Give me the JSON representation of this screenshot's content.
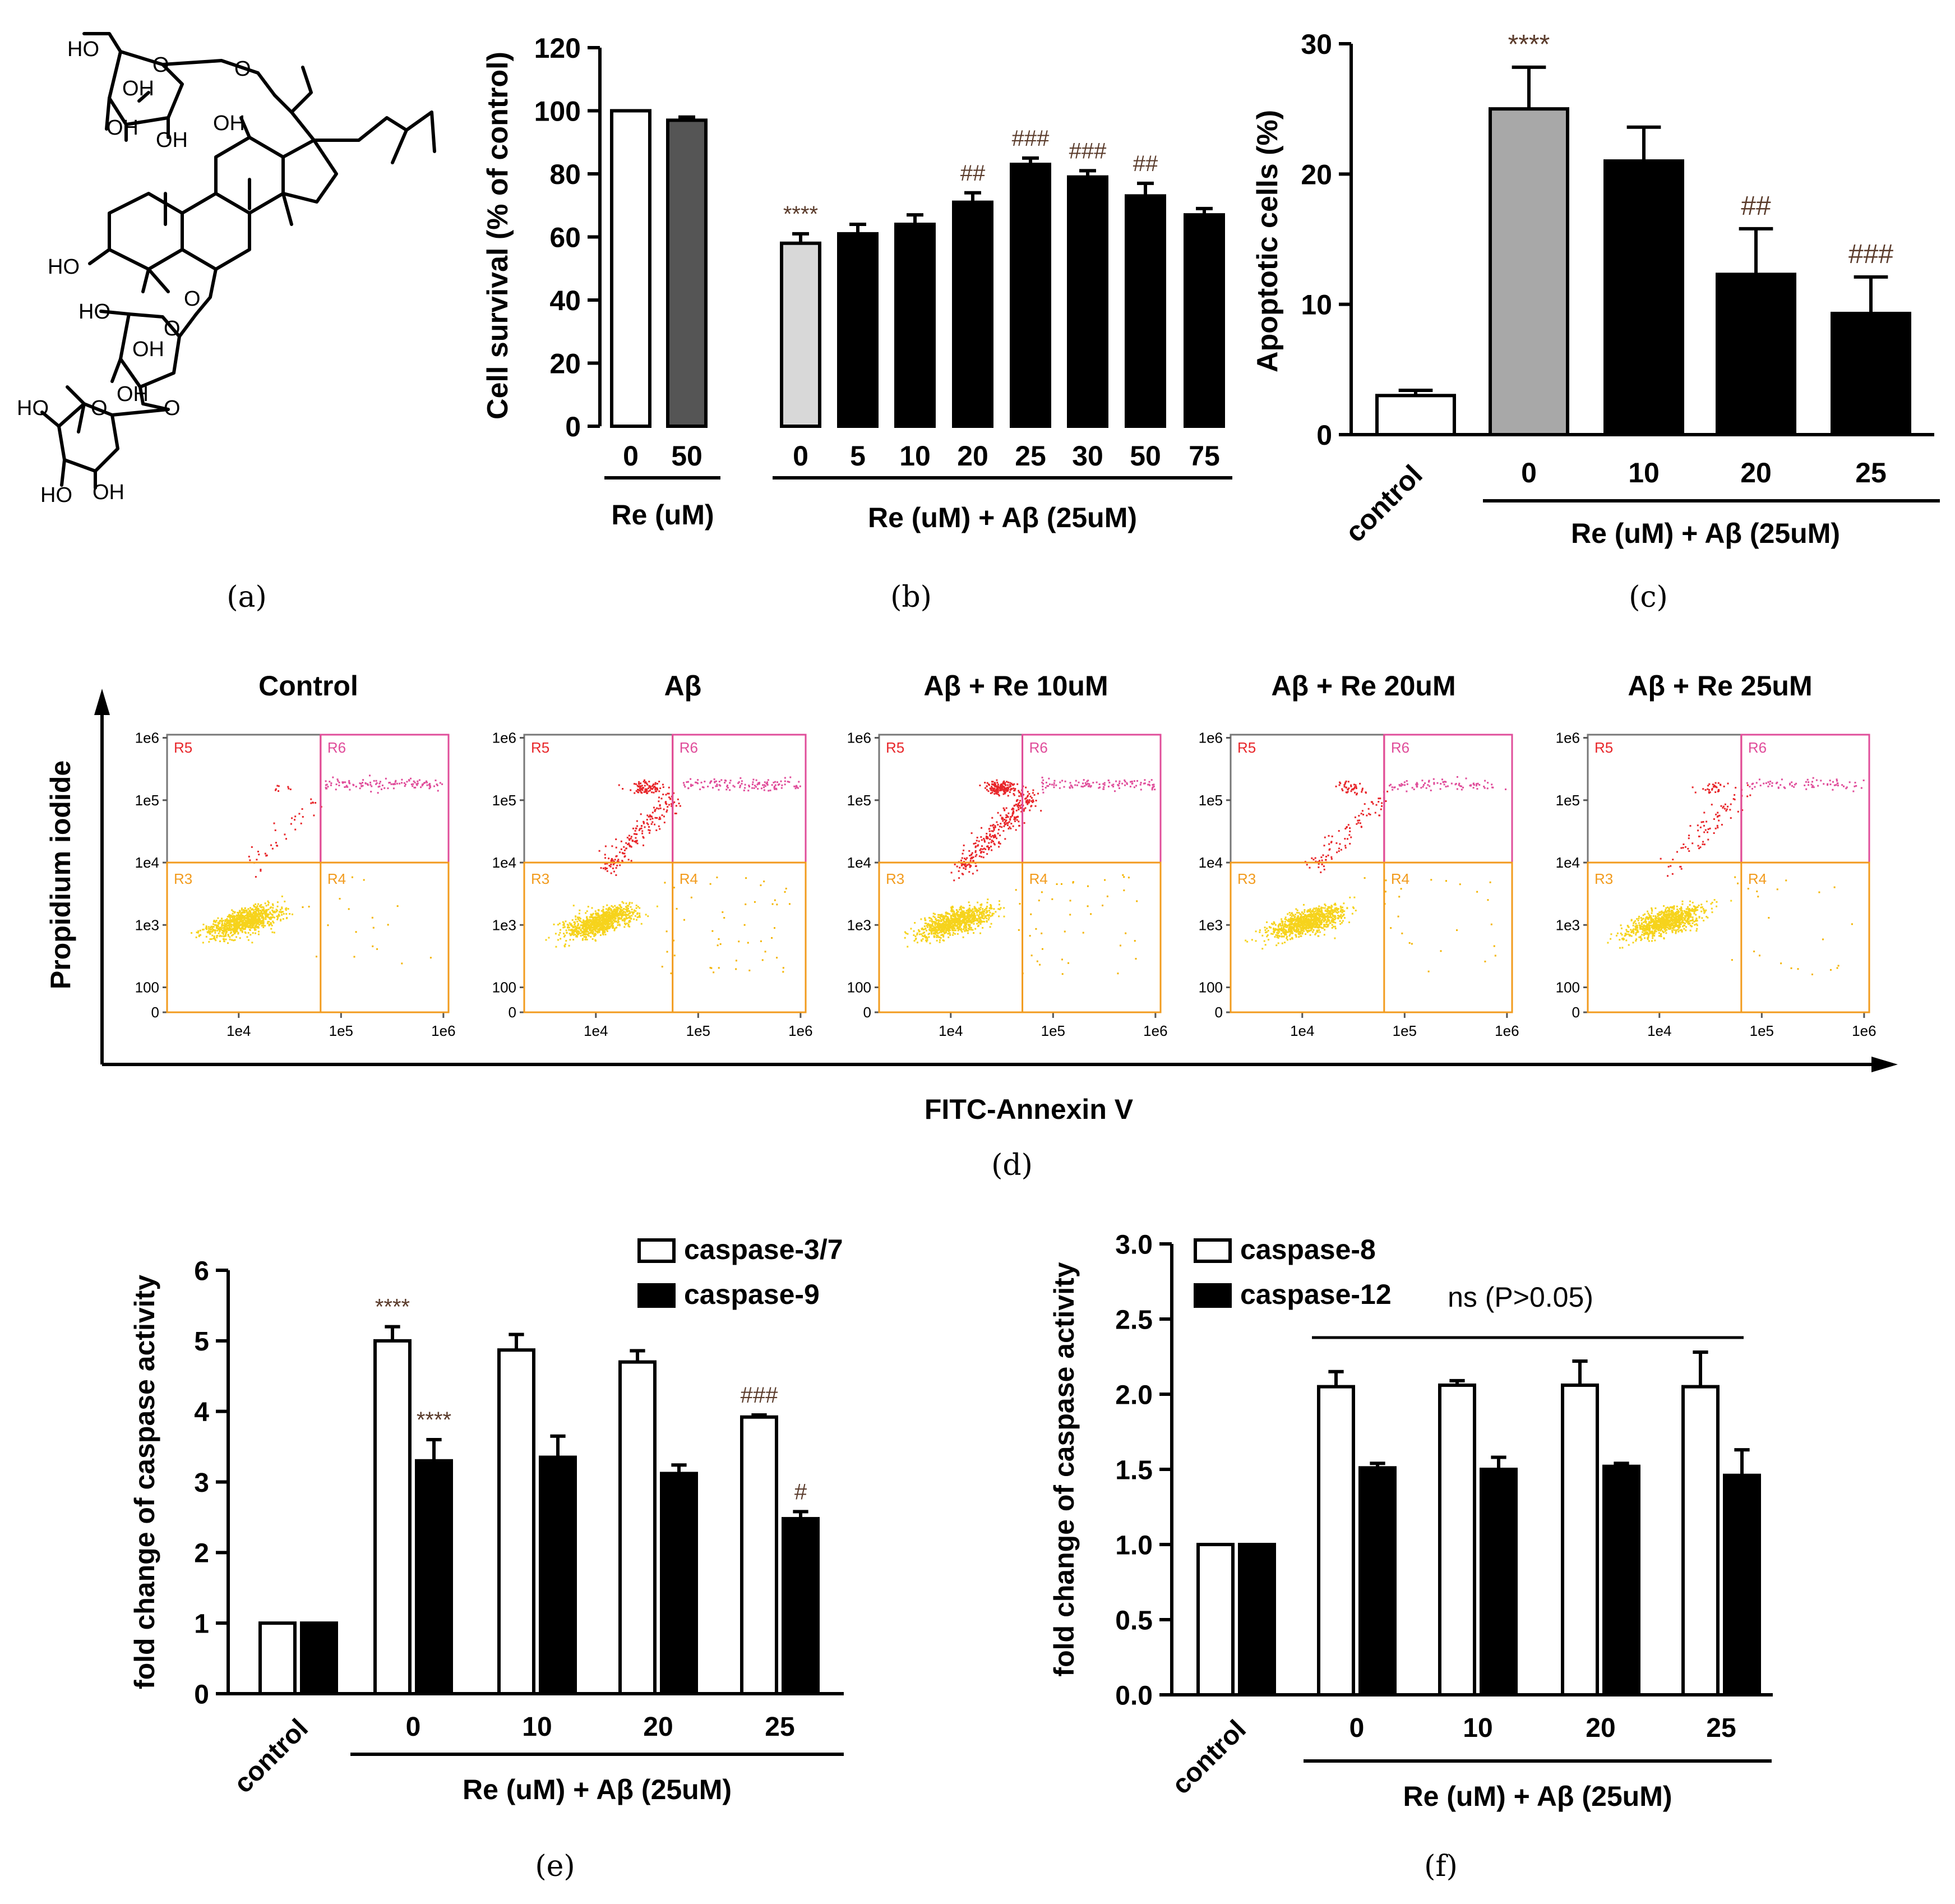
{
  "colors": {
    "white_bar": "#ffffff",
    "black_bar": "#000000",
    "dark_gray_bar": "#555555",
    "light_gray_bar": "#d8d8d8",
    "mid_gray_bar": "#a8a8a8",
    "annotation_text": "#5a3b2b",
    "gate_red": "#e8262a",
    "gate_pink": "#e04d9a",
    "gate_orange": "#f29b1d",
    "dot_yellow": "#f6d31c"
  },
  "panel_a": {
    "label": "(a)",
    "atoms": [
      "HO",
      "O",
      "OH",
      "OH",
      "OH",
      "O",
      "OH",
      "HO",
      "O",
      "HO",
      "O",
      "OH",
      "OH",
      "HO",
      "O",
      "O",
      "HO",
      "OH"
    ]
  },
  "chart_data": [
    {
      "panel": "b",
      "panel_label": "(b)",
      "type": "bar",
      "title": "",
      "xlabel": "",
      "ylabel": "Cell survival (% of control)",
      "ylim": [
        0,
        120
      ],
      "yticks": [
        "0",
        "20",
        "40",
        "60",
        "80",
        "100",
        "120"
      ],
      "groups": [
        {
          "label": "Re (uM)",
          "categories": [
            "0",
            "50"
          ]
        },
        {
          "label": "Re (uM) + Aβ (25uM)",
          "categories": [
            "0",
            "5",
            "10",
            "20",
            "25",
            "30",
            "50",
            "75"
          ]
        }
      ],
      "categories": [
        "0",
        "50",
        "0",
        "5",
        "10",
        "20",
        "25",
        "30",
        "50",
        "75"
      ],
      "values": [
        100,
        97,
        58,
        61,
        64,
        71,
        83,
        79,
        73,
        67
      ],
      "errors": [
        0,
        1,
        3,
        3,
        3,
        3,
        2,
        2,
        4,
        2
      ],
      "fills": [
        "white_bar",
        "dark_gray_bar",
        "light_gray_bar",
        "black_bar",
        "black_bar",
        "black_bar",
        "black_bar",
        "black_bar",
        "black_bar",
        "black_bar"
      ],
      "annotations": [
        "",
        "",
        "****",
        "",
        "",
        "##",
        "###",
        "###",
        "##",
        ""
      ]
    },
    {
      "panel": "c",
      "panel_label": "(c)",
      "type": "bar",
      "title": "",
      "xlabel": "",
      "ylabel": "Apoptotic cells (%)",
      "ylim": [
        0,
        30
      ],
      "yticks": [
        "0",
        "10",
        "20",
        "30"
      ],
      "groups": [
        {
          "label": "",
          "categories": [
            "control"
          ]
        },
        {
          "label": "Re (uM) + Aβ (25uM)",
          "categories": [
            "0",
            "10",
            "20",
            "25"
          ]
        }
      ],
      "categories": [
        "control",
        "0",
        "10",
        "20",
        "25"
      ],
      "values": [
        3,
        25,
        21,
        12.3,
        9.3
      ],
      "errors": [
        0.4,
        3.2,
        2.6,
        3.5,
        2.8
      ],
      "fills": [
        "white_bar",
        "mid_gray_bar",
        "black_bar",
        "black_bar",
        "black_bar"
      ],
      "annotations": [
        "",
        "****",
        "",
        "##",
        "###"
      ]
    },
    {
      "panel": "d",
      "panel_label": "(d)",
      "type": "scatter",
      "xlabel": "FITC-Annexin V",
      "ylabel": "Propidium iodide",
      "x_scale": "log",
      "y_scale": "log",
      "x_ticks": [
        "1e4",
        "1e5",
        "1e6"
      ],
      "y_ticks": [
        "0",
        "100",
        "1e3",
        "1e4",
        "1e5",
        "1e6"
      ],
      "gates": [
        "R3",
        "R4",
        "R5",
        "R6"
      ],
      "subplots": [
        {
          "title": "Control",
          "gate_x_decade": 4.8,
          "gate_y_decade": 4.0,
          "necrotic_cluster": 0.05,
          "late_apoptotic_band": 0.5,
          "early_apoptotic": 0.05
        },
        {
          "title": "Aβ",
          "gate_x_decade": 4.75,
          "gate_y_decade": 4.0,
          "necrotic_cluster": 0.6,
          "late_apoptotic_band": 0.5,
          "early_apoptotic": 0.3
        },
        {
          "title": "Aβ + Re 10uM",
          "gate_x_decade": 4.7,
          "gate_y_decade": 4.0,
          "necrotic_cluster": 1.0,
          "late_apoptotic_band": 0.45,
          "early_apoptotic": 0.25
        },
        {
          "title": "Aβ + Re 20uM",
          "gate_x_decade": 4.8,
          "gate_y_decade": 4.0,
          "necrotic_cluster": 0.25,
          "late_apoptotic_band": 0.35,
          "early_apoptotic": 0.1
        },
        {
          "title": "Aβ + Re 25uM",
          "gate_x_decade": 4.8,
          "gate_y_decade": 4.0,
          "necrotic_cluster": 0.2,
          "late_apoptotic_band": 0.3,
          "early_apoptotic": 0.08
        }
      ]
    },
    {
      "panel": "e",
      "panel_label": "(e)",
      "type": "bar",
      "title": "",
      "xlabel": "Re (uM) + Aβ (25uM)",
      "ylabel": "fold change of caspase activity",
      "ylim": [
        0,
        6
      ],
      "yticks": [
        "0",
        "1",
        "2",
        "3",
        "4",
        "5",
        "6"
      ],
      "categories": [
        "control",
        "0",
        "10",
        "20",
        "25"
      ],
      "legend_position": "top-right",
      "series": [
        {
          "name": "caspase-3/7",
          "fill": "white_bar",
          "values": [
            1,
            5.0,
            4.87,
            4.7,
            3.92
          ],
          "errors": [
            0,
            0.2,
            0.22,
            0.16,
            0.03
          ],
          "annotations": [
            "",
            "****",
            "",
            "",
            "###"
          ]
        },
        {
          "name": "caspase-9",
          "fill": "black_bar",
          "values": [
            1,
            3.3,
            3.35,
            3.12,
            2.48
          ],
          "errors": [
            0,
            0.3,
            0.3,
            0.12,
            0.1
          ],
          "annotations": [
            "",
            "****",
            "",
            "",
            "#"
          ]
        }
      ]
    },
    {
      "panel": "f",
      "panel_label": "(f)",
      "type": "bar",
      "title": "",
      "xlabel": "Re (uM) + Aβ (25uM)",
      "ylabel": "fold change of caspase activity",
      "ylim": [
        0,
        3
      ],
      "yticks": [
        "0.0",
        "0.5",
        "1.0",
        "1.5",
        "2.0",
        "2.5",
        "3.0"
      ],
      "categories": [
        "control",
        "0",
        "10",
        "20",
        "25"
      ],
      "legend_position": "top-left",
      "significance_note": "ns (P>0.05)",
      "series": [
        {
          "name": "caspase-8",
          "fill": "white_bar",
          "values": [
            1,
            2.05,
            2.06,
            2.06,
            2.05
          ],
          "errors": [
            0,
            0.1,
            0.03,
            0.16,
            0.23
          ]
        },
        {
          "name": "caspase-12",
          "fill": "black_bar",
          "values": [
            1,
            1.51,
            1.5,
            1.52,
            1.46
          ],
          "errors": [
            0,
            0.03,
            0.08,
            0.02,
            0.17
          ]
        }
      ]
    }
  ]
}
